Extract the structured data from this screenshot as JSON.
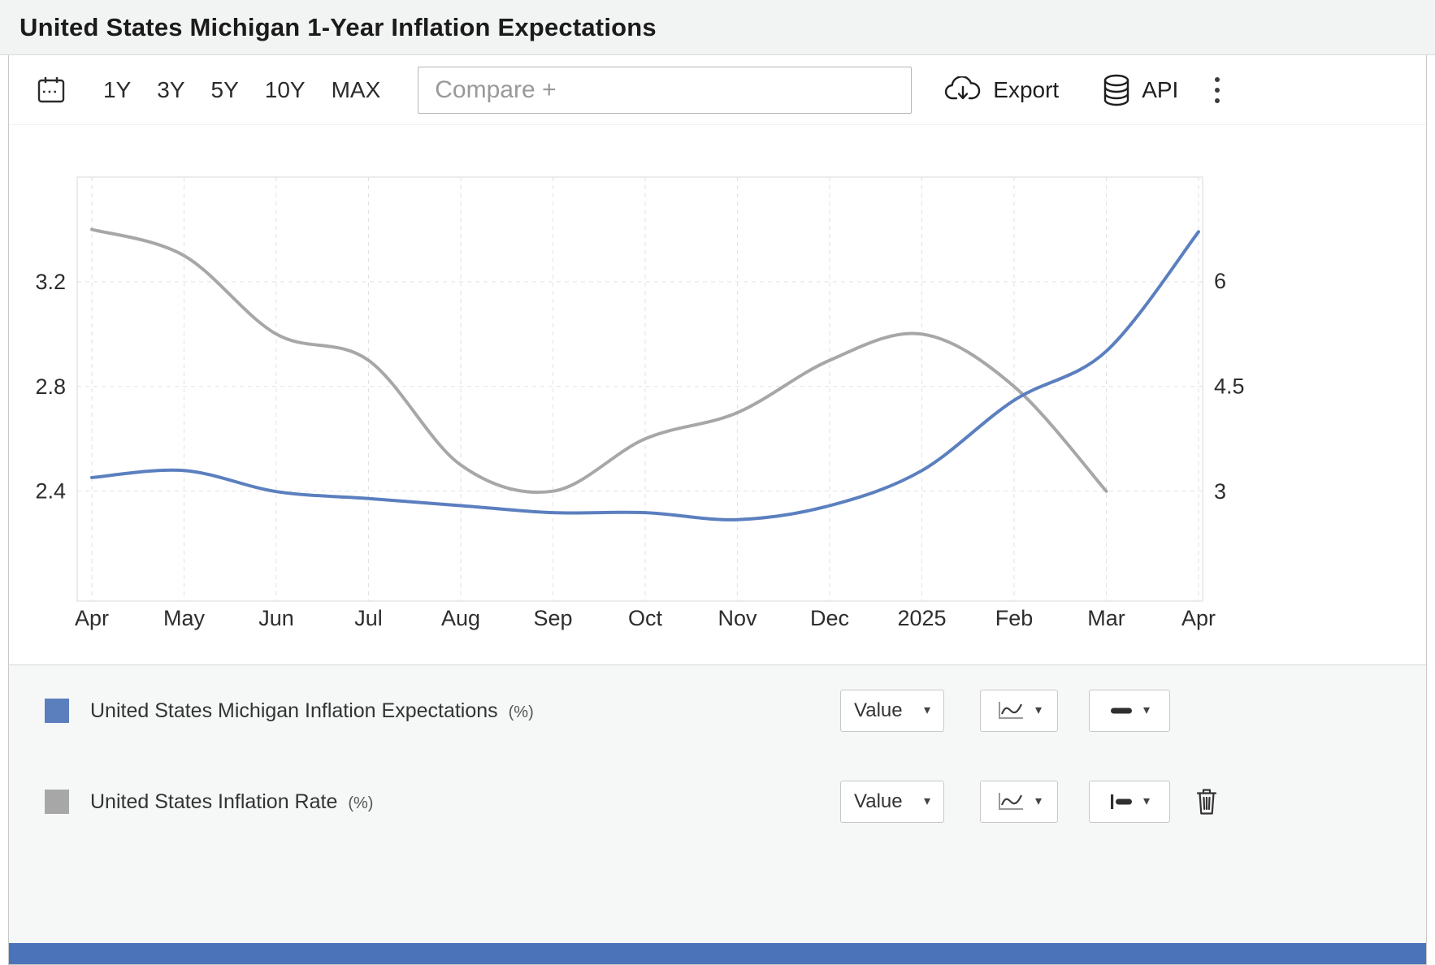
{
  "header": {
    "title": "United States Michigan 1-Year Inflation Expectations"
  },
  "toolbar": {
    "ranges": [
      "1Y",
      "3Y",
      "5Y",
      "10Y",
      "MAX"
    ],
    "compare_placeholder": "Compare +",
    "export_label": "Export",
    "api_label": "API"
  },
  "icons": {
    "caret_down": "▾"
  },
  "chart_data": {
    "type": "line",
    "x": [
      "Apr",
      "May",
      "Jun",
      "Jul",
      "Aug",
      "Sep",
      "Oct",
      "Nov",
      "Dec",
      "2025",
      "Feb",
      "Mar",
      "Apr"
    ],
    "series": [
      {
        "name": "United States Michigan Inflation Expectations",
        "unit": "%",
        "axis": "right",
        "color": "#5b7fbf",
        "values": [
          3.2,
          3.3,
          3.0,
          2.9,
          2.8,
          2.7,
          2.7,
          2.6,
          2.8,
          3.3,
          4.3,
          5.0,
          6.7
        ]
      },
      {
        "name": "United States Inflation Rate",
        "unit": "%",
        "axis": "left",
        "color": "#a7a7a7",
        "values": [
          3.4,
          3.3,
          3.0,
          2.9,
          2.5,
          2.4,
          2.6,
          2.7,
          2.9,
          3.0,
          2.8,
          2.4
        ]
      }
    ],
    "left_axis": {
      "ticks": [
        3.2,
        2.8,
        2.4
      ],
      "range": [
        1.98,
        3.6
      ]
    },
    "right_axis": {
      "ticks": [
        6,
        4.5,
        3
      ],
      "range": [
        1.44,
        7.48
      ]
    },
    "grid": "dashed",
    "legend_position": "bottom"
  },
  "legend": {
    "rows": [
      {
        "label": "United States Michigan Inflation Expectations",
        "unit_label": "(%)",
        "swatch": "#5b7fbd",
        "value_label": "Value"
      },
      {
        "label": "United States Inflation Rate",
        "unit_label": "(%)",
        "swatch": "#a7a7a7",
        "value_label": "Value"
      }
    ]
  },
  "footer": {
    "bar_color": "#4a73ba"
  }
}
